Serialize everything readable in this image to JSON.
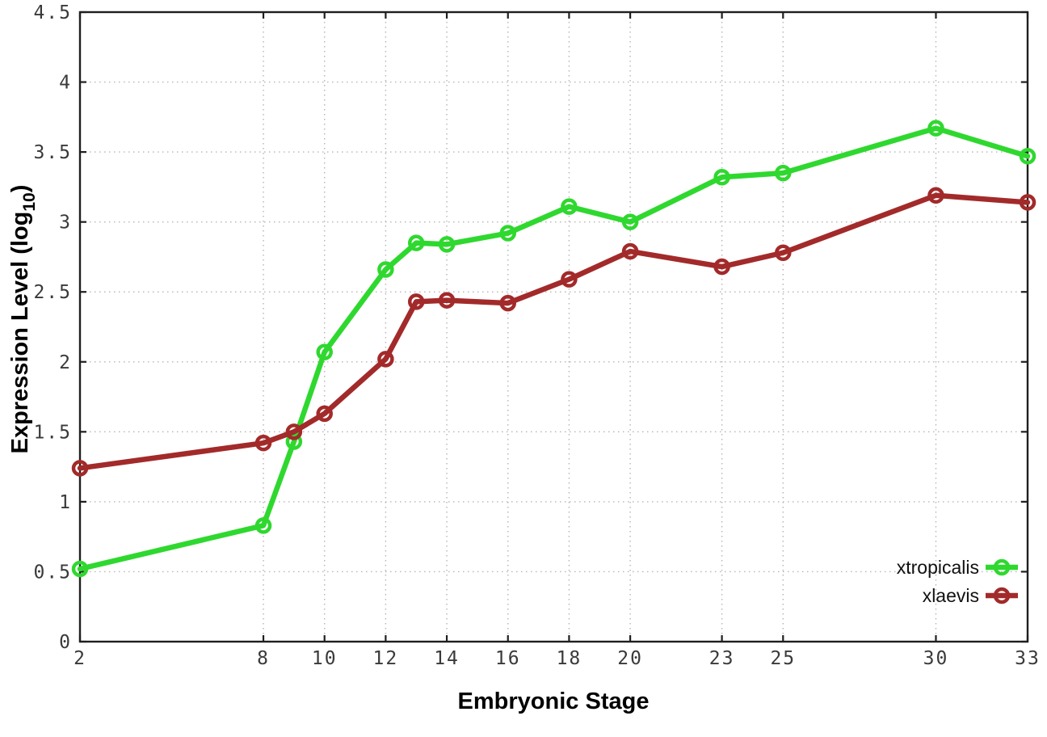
{
  "chart_data": {
    "type": "line",
    "title": "",
    "xlabel": "Embryonic Stage",
    "ylabel_prefix": "Expression Level (log",
    "ylabel_sub": "10",
    "ylabel_suffix": ")",
    "xlim": [
      2,
      33
    ],
    "ylim": [
      0,
      4.5
    ],
    "grid": true,
    "legend_position": "bottom-right",
    "x_ticks": [
      2,
      8,
      10,
      12,
      14,
      16,
      18,
      20,
      23,
      25,
      30,
      33
    ],
    "y_ticks": [
      0,
      0.5,
      1,
      1.5,
      2,
      2.5,
      3,
      3.5,
      4,
      4.5
    ],
    "y_tick_labels": [
      "0",
      "0.5",
      "1",
      "1.5",
      "2",
      "2.5",
      "3",
      "3.5",
      "4",
      "4.5"
    ],
    "x": [
      2,
      8,
      9,
      10,
      12,
      13,
      14,
      16,
      18,
      20,
      23,
      25,
      30,
      33
    ],
    "series": [
      {
        "name": "xtropicalis",
        "color": "#2fd82f",
        "values": [
          0.52,
          0.83,
          1.43,
          2.07,
          2.66,
          2.85,
          2.84,
          2.92,
          3.11,
          3.0,
          3.32,
          3.35,
          3.67,
          3.47
        ]
      },
      {
        "name": "xlaevis",
        "color": "#a32a2a",
        "values": [
          1.24,
          1.42,
          1.5,
          1.63,
          2.02,
          2.43,
          2.44,
          2.42,
          2.59,
          2.79,
          2.68,
          2.78,
          3.19,
          3.14
        ]
      }
    ],
    "style": {
      "grid_color": "#b5b5b5",
      "border_color": "#1f1f1f",
      "background": "#ffffff"
    }
  }
}
